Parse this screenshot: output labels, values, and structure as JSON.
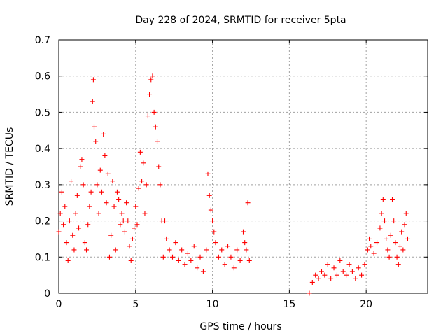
{
  "chart_data": {
    "type": "scatter",
    "title": "Day 228 of 2024, SRMTID for receiver 5pta",
    "xlabel": "GPS time / hours",
    "ylabel": "SRMTID / TECUs",
    "xlim": [
      0,
      24
    ],
    "ylim": [
      0,
      0.7
    ],
    "x_ticks": [
      0,
      5,
      10,
      15,
      20
    ],
    "x_tick_labels": [
      "0",
      "5",
      "10",
      "15",
      "20"
    ],
    "y_ticks": [
      0,
      0.1,
      0.2,
      0.3,
      0.4,
      0.5,
      0.6,
      0.7
    ],
    "y_tick_labels": [
      "0",
      "0.1",
      "0.2",
      "0.3",
      "0.4",
      "0.5",
      "0.6",
      "0.7"
    ],
    "grid": true,
    "marker": "+",
    "color": "#ff0000",
    "series": [
      {
        "name": "SRMTID",
        "points": [
          [
            0.0,
            0.17
          ],
          [
            0.1,
            0.22
          ],
          [
            0.2,
            0.28
          ],
          [
            0.3,
            0.19
          ],
          [
            0.4,
            0.24
          ],
          [
            0.5,
            0.14
          ],
          [
            0.6,
            0.09
          ],
          [
            0.7,
            0.2
          ],
          [
            0.8,
            0.31
          ],
          [
            0.9,
            0.16
          ],
          [
            1.0,
            0.12
          ],
          [
            1.1,
            0.22
          ],
          [
            1.2,
            0.27
          ],
          [
            1.3,
            0.18
          ],
          [
            1.4,
            0.35
          ],
          [
            1.5,
            0.37
          ],
          [
            1.6,
            0.3
          ],
          [
            1.7,
            0.14
          ],
          [
            1.8,
            0.12
          ],
          [
            1.9,
            0.19
          ],
          [
            2.0,
            0.24
          ],
          [
            2.1,
            0.28
          ],
          [
            2.2,
            0.53
          ],
          [
            2.25,
            0.59
          ],
          [
            2.3,
            0.46
          ],
          [
            2.4,
            0.42
          ],
          [
            2.5,
            0.3
          ],
          [
            2.6,
            0.22
          ],
          [
            2.7,
            0.34
          ],
          [
            2.8,
            0.28
          ],
          [
            2.9,
            0.44
          ],
          [
            3.0,
            0.38
          ],
          [
            3.1,
            0.25
          ],
          [
            3.2,
            0.33
          ],
          [
            3.3,
            0.1
          ],
          [
            3.4,
            0.16
          ],
          [
            3.5,
            0.31
          ],
          [
            3.6,
            0.24
          ],
          [
            3.7,
            0.12
          ],
          [
            3.8,
            0.28
          ],
          [
            3.9,
            0.26
          ],
          [
            4.0,
            0.19
          ],
          [
            4.1,
            0.22
          ],
          [
            4.2,
            0.2
          ],
          [
            4.3,
            0.17
          ],
          [
            4.4,
            0.25
          ],
          [
            4.5,
            0.2
          ],
          [
            4.6,
            0.13
          ],
          [
            4.7,
            0.09
          ],
          [
            4.8,
            0.15
          ],
          [
            4.9,
            0.18
          ],
          [
            5.0,
            0.24
          ],
          [
            5.1,
            0.19
          ],
          [
            5.2,
            0.29
          ],
          [
            5.3,
            0.39
          ],
          [
            5.4,
            0.31
          ],
          [
            5.5,
            0.36
          ],
          [
            5.6,
            0.22
          ],
          [
            5.7,
            0.3
          ],
          [
            5.8,
            0.49
          ],
          [
            5.9,
            0.55
          ],
          [
            6.0,
            0.59
          ],
          [
            6.1,
            0.6
          ],
          [
            6.2,
            0.5
          ],
          [
            6.3,
            0.46
          ],
          [
            6.4,
            0.42
          ],
          [
            6.5,
            0.35
          ],
          [
            6.6,
            0.3
          ],
          [
            6.7,
            0.2
          ],
          [
            6.8,
            0.1
          ],
          [
            6.9,
            0.2
          ],
          [
            7.0,
            0.15
          ],
          [
            7.2,
            0.12
          ],
          [
            7.4,
            0.1
          ],
          [
            7.6,
            0.14
          ],
          [
            7.8,
            0.09
          ],
          [
            8.0,
            0.12
          ],
          [
            8.2,
            0.08
          ],
          [
            8.4,
            0.11
          ],
          [
            8.6,
            0.09
          ],
          [
            8.8,
            0.13
          ],
          [
            9.0,
            0.07
          ],
          [
            9.2,
            0.1
          ],
          [
            9.4,
            0.06
          ],
          [
            9.6,
            0.12
          ],
          [
            9.7,
            0.33
          ],
          [
            9.8,
            0.27
          ],
          [
            9.9,
            0.23
          ],
          [
            10.0,
            0.2
          ],
          [
            10.1,
            0.17
          ],
          [
            10.2,
            0.14
          ],
          [
            10.4,
            0.1
          ],
          [
            10.6,
            0.12
          ],
          [
            10.8,
            0.08
          ],
          [
            11.0,
            0.13
          ],
          [
            11.2,
            0.1
          ],
          [
            11.4,
            0.07
          ],
          [
            11.6,
            0.12
          ],
          [
            11.8,
            0.09
          ],
          [
            12.0,
            0.17
          ],
          [
            12.1,
            0.14
          ],
          [
            12.2,
            0.12
          ],
          [
            12.3,
            0.25
          ],
          [
            12.4,
            0.09
          ],
          [
            16.3,
            0.0
          ],
          [
            16.5,
            0.03
          ],
          [
            16.7,
            0.05
          ],
          [
            16.9,
            0.04
          ],
          [
            17.1,
            0.06
          ],
          [
            17.3,
            0.05
          ],
          [
            17.5,
            0.08
          ],
          [
            17.7,
            0.04
          ],
          [
            17.9,
            0.07
          ],
          [
            18.1,
            0.05
          ],
          [
            18.3,
            0.09
          ],
          [
            18.5,
            0.06
          ],
          [
            18.7,
            0.05
          ],
          [
            18.9,
            0.08
          ],
          [
            19.1,
            0.06
          ],
          [
            19.3,
            0.04
          ],
          [
            19.5,
            0.07
          ],
          [
            19.7,
            0.05
          ],
          [
            19.9,
            0.08
          ],
          [
            20.1,
            0.12
          ],
          [
            20.2,
            0.15
          ],
          [
            20.3,
            0.13
          ],
          [
            20.5,
            0.11
          ],
          [
            20.7,
            0.14
          ],
          [
            20.9,
            0.18
          ],
          [
            21.0,
            0.22
          ],
          [
            21.1,
            0.26
          ],
          [
            21.2,
            0.2
          ],
          [
            21.3,
            0.15
          ],
          [
            21.4,
            0.12
          ],
          [
            21.5,
            0.1
          ],
          [
            21.6,
            0.16
          ],
          [
            21.7,
            0.26
          ],
          [
            21.8,
            0.2
          ],
          [
            21.9,
            0.14
          ],
          [
            22.0,
            0.1
          ],
          [
            22.1,
            0.08
          ],
          [
            22.2,
            0.13
          ],
          [
            22.3,
            0.17
          ],
          [
            22.4,
            0.12
          ],
          [
            22.5,
            0.19
          ],
          [
            22.6,
            0.22
          ],
          [
            22.7,
            0.15
          ]
        ]
      }
    ]
  }
}
